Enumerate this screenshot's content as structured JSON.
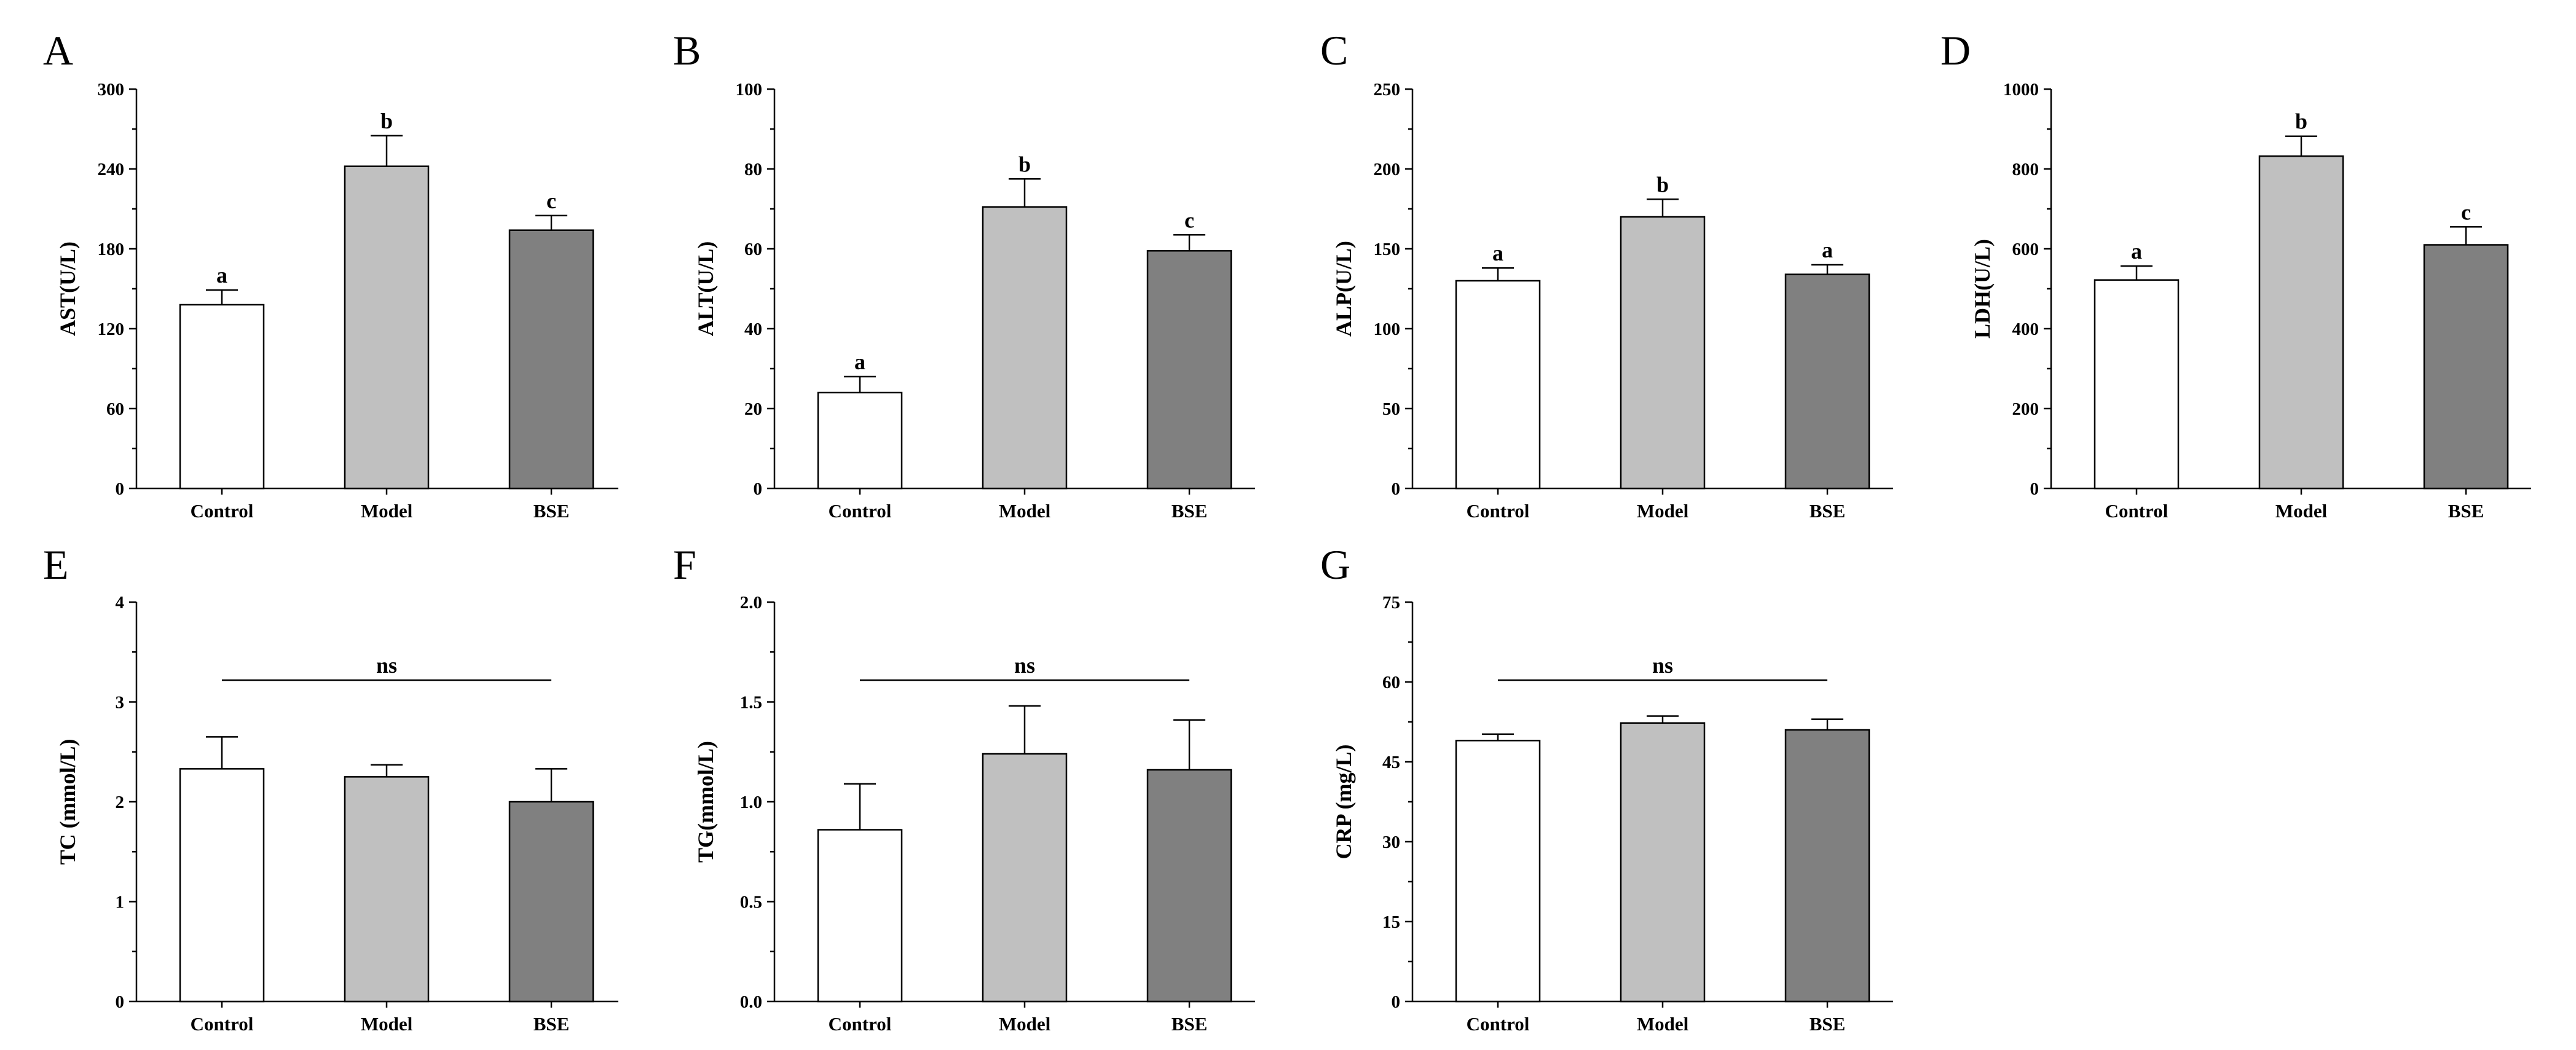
{
  "chart_data": [
    {
      "type": "bar",
      "panel": "A",
      "ylabel": "AST(U/L)",
      "categories": [
        "Control",
        "Model",
        "BSE"
      ],
      "values": [
        138,
        242,
        194
      ],
      "errors": [
        11,
        23,
        11
      ],
      "significance": [
        "a",
        "b",
        "c"
      ],
      "ylim": [
        0,
        300
      ],
      "yticks": [
        0,
        60,
        120,
        180,
        240,
        300
      ],
      "ytick_labels": [
        "0",
        "60",
        "120",
        "180",
        "240",
        "300"
      ],
      "colors": [
        "#ffffff",
        "#c0c0c0",
        "#808080"
      ]
    },
    {
      "type": "bar",
      "panel": "B",
      "ylabel": "ALT(U/L)",
      "categories": [
        "Control",
        "Model",
        "BSE"
      ],
      "values": [
        24,
        70.5,
        59.5
      ],
      "errors": [
        4,
        7,
        4
      ],
      "significance": [
        "a",
        "b",
        "c"
      ],
      "ylim": [
        0,
        100
      ],
      "yticks": [
        0,
        20,
        40,
        60,
        80,
        100
      ],
      "ytick_labels": [
        "0",
        "20",
        "40",
        "60",
        "80",
        "100"
      ],
      "colors": [
        "#ffffff",
        "#c0c0c0",
        "#808080"
      ]
    },
    {
      "type": "bar",
      "panel": "C",
      "ylabel": "ALP(U/L)",
      "categories": [
        "Control",
        "Model",
        "BSE"
      ],
      "values": [
        130,
        170,
        134
      ],
      "errors": [
        8,
        11,
        6
      ],
      "significance": [
        "a",
        "b",
        "a"
      ],
      "ylim": [
        0,
        250
      ],
      "yticks": [
        0,
        50,
        100,
        150,
        200,
        250
      ],
      "ytick_labels": [
        "0",
        "50",
        "100",
        "150",
        "200",
        "250"
      ],
      "colors": [
        "#ffffff",
        "#c0c0c0",
        "#808080"
      ]
    },
    {
      "type": "bar",
      "panel": "D",
      "ylabel": "LDH(U/L)",
      "categories": [
        "Control",
        "Model",
        "BSE"
      ],
      "values": [
        522,
        832,
        610
      ],
      "errors": [
        35,
        50,
        45
      ],
      "significance": [
        "a",
        "b",
        "c"
      ],
      "ylim": [
        0,
        1000
      ],
      "yticks": [
        0,
        200,
        400,
        600,
        800,
        1000
      ],
      "ytick_labels": [
        "0",
        "200",
        "400",
        "600",
        "800",
        "1000"
      ],
      "colors": [
        "#ffffff",
        "#c0c0c0",
        "#808080"
      ]
    },
    {
      "type": "bar",
      "panel": "E",
      "ylabel": "TC (mmol/L)",
      "categories": [
        "Control",
        "Model",
        "BSE"
      ],
      "values": [
        2.33,
        2.25,
        2.0
      ],
      "errors": [
        0.32,
        0.12,
        0.33
      ],
      "significance_line": "ns",
      "ylim": [
        0,
        4
      ],
      "yticks": [
        0,
        1,
        2,
        3,
        4
      ],
      "ytick_labels": [
        "0",
        "1",
        "2",
        "3",
        "4"
      ],
      "colors": [
        "#ffffff",
        "#c0c0c0",
        "#808080"
      ]
    },
    {
      "type": "bar",
      "panel": "F",
      "ylabel": "TG(mmol/L)",
      "categories": [
        "Control",
        "Model",
        "BSE"
      ],
      "values": [
        0.86,
        1.24,
        1.16
      ],
      "errors": [
        0.23,
        0.24,
        0.25
      ],
      "significance_line": "ns",
      "ylim": [
        0,
        2
      ],
      "yticks": [
        0,
        0.5,
        1.0,
        1.5,
        2.0
      ],
      "ytick_labels": [
        "0.0",
        "0.5",
        "1.0",
        "1.5",
        "2.0"
      ],
      "colors": [
        "#ffffff",
        "#c0c0c0",
        "#808080"
      ]
    },
    {
      "type": "bar",
      "panel": "G",
      "ylabel": "CRP (mg/L)",
      "categories": [
        "Control",
        "Model",
        "BSE"
      ],
      "values": [
        49,
        52.3,
        51
      ],
      "errors": [
        1.2,
        1.3,
        2.0
      ],
      "significance_line": "ns",
      "ylim": [
        0,
        75
      ],
      "yticks": [
        0,
        15,
        30,
        45,
        60,
        75
      ],
      "ytick_labels": [
        "0",
        "15",
        "30",
        "45",
        "60",
        "75"
      ],
      "colors": [
        "#ffffff",
        "#c0c0c0",
        "#808080"
      ]
    }
  ]
}
